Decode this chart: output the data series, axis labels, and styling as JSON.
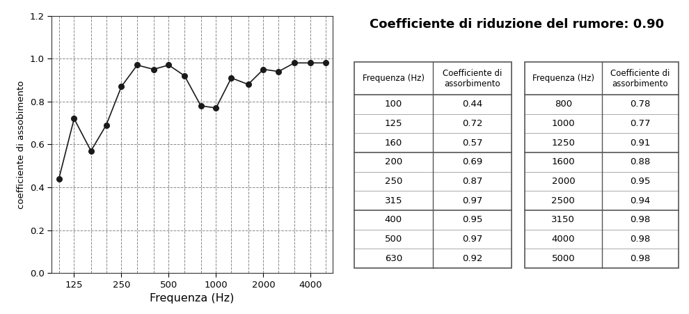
{
  "title": "Coefficiente di riduzione del rumore: 0.90",
  "xlabel": "Frequenza (Hz)",
  "ylabel": "coefficiente di assobimento",
  "frequencies": [
    100,
    125,
    160,
    200,
    250,
    315,
    400,
    500,
    630,
    800,
    1000,
    1250,
    1600,
    2000,
    2500,
    3150,
    4000,
    5000
  ],
  "absorption": [
    0.44,
    0.72,
    0.57,
    0.69,
    0.87,
    0.97,
    0.95,
    0.97,
    0.92,
    0.78,
    0.77,
    0.91,
    0.88,
    0.95,
    0.94,
    0.98,
    0.98,
    0.98
  ],
  "ylim": [
    0.0,
    1.2
  ],
  "yticks": [
    0.0,
    0.2,
    0.4,
    0.6,
    0.8,
    1.0,
    1.2
  ],
  "xtick_labels": [
    "125",
    "250",
    "500",
    "1000",
    "2000",
    "4000"
  ],
  "xtick_positions": [
    125,
    250,
    500,
    1000,
    2000,
    4000
  ],
  "table_col1_freq": [
    "100",
    "125",
    "160",
    "200",
    "250",
    "315",
    "400",
    "500",
    "630"
  ],
  "table_col1_abs": [
    "0.44",
    "0.72",
    "0.57",
    "0.69",
    "0.87",
    "0.97",
    "0.95",
    "0.97",
    "0.92"
  ],
  "table_col2_freq": [
    "800",
    "1000",
    "1250",
    "1600",
    "2000",
    "2500",
    "3150",
    "4000",
    "5000"
  ],
  "table_col2_abs": [
    "0.78",
    "0.77",
    "0.91",
    "0.88",
    "0.95",
    "0.94",
    "0.98",
    "0.98",
    "0.98"
  ],
  "header_freq": "Frequenza (Hz)",
  "header_abs": "Coefficiente di\nassorbimento",
  "line_color": "#1a1a1a",
  "marker_color": "#1a1a1a",
  "grid_color": "#888888",
  "background_color": "#ffffff",
  "table_border_color": "#888888",
  "table_group_border_color": "#555555"
}
